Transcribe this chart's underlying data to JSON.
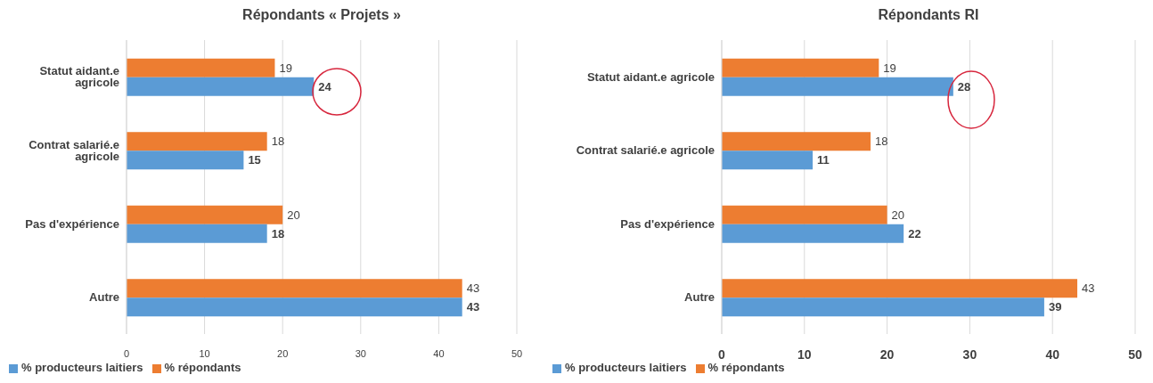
{
  "chart_data": [
    {
      "type": "bar",
      "orientation": "horizontal",
      "title": "Répondants  « Projets »",
      "categories": [
        "Statut aidant.e agricole",
        "Contrat salarié.e agricole",
        "Pas d'expérience",
        "Autre"
      ],
      "series": [
        {
          "name": "% répondants",
          "color": "#ed7d31",
          "values": [
            19,
            18,
            20,
            43
          ]
        },
        {
          "name": "% producteurs laitiers",
          "color": "#5b9bd5",
          "values": [
            24,
            15,
            18,
            43
          ]
        }
      ],
      "xlim": [
        0,
        50
      ],
      "xticks": [
        0,
        10,
        20,
        30,
        40,
        50
      ],
      "grid": "x",
      "legend": "bottom left",
      "data_labels": true
    },
    {
      "type": "bar",
      "orientation": "horizontal",
      "title": "Répondants RI",
      "categories": [
        "Statut aidant.e agricole",
        "Contrat salarié.e agricole",
        "Pas d'expérience",
        "Autre"
      ],
      "series": [
        {
          "name": "% répondants",
          "color": "#ed7d31",
          "values": [
            19,
            18,
            20,
            43
          ]
        },
        {
          "name": "% producteurs laitiers",
          "color": "#5b9bd5",
          "values": [
            28,
            11,
            22,
            39
          ]
        }
      ],
      "xlim": [
        0,
        50
      ],
      "xticks": [
        0,
        10,
        20,
        30,
        40,
        50
      ],
      "grid": "x",
      "legend": "bottom left",
      "data_labels": true
    }
  ]
}
